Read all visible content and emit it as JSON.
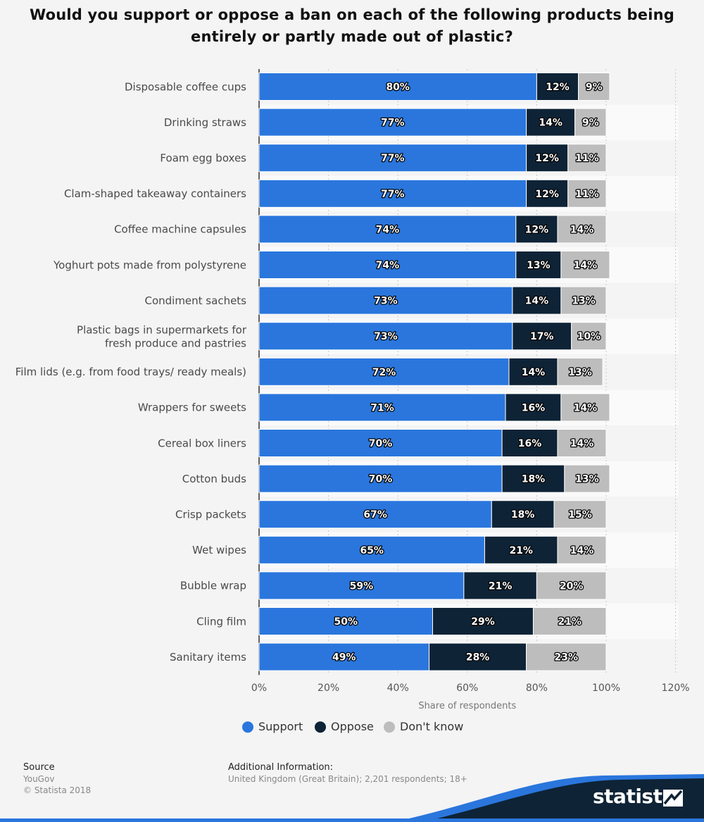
{
  "title": "Would you support or oppose a ban on each of the following products being entirely or partly made out of plastic?",
  "chart_data": {
    "type": "bar",
    "orientation": "horizontal",
    "stacked": true,
    "categories": [
      "Disposable coffee cups",
      "Drinking straws",
      "Foam egg boxes",
      "Clam-shaped takeaway containers",
      "Coffee machine capsules",
      "Yoghurt pots made from polystyrene",
      "Condiment sachets",
      "Plastic bags in supermarkets for\nfresh produce and pastries",
      "Film lids (e.g. from food trays/ ready meals)",
      "Wrappers for sweets",
      "Cereal box liners",
      "Cotton buds",
      "Crisp packets",
      "Wet wipes",
      "Bubble wrap",
      "Cling film",
      "Sanitary items"
    ],
    "series": [
      {
        "name": "Support",
        "color": "#2a76dd",
        "values": [
          80,
          77,
          77,
          77,
          74,
          74,
          73,
          73,
          72,
          71,
          70,
          70,
          67,
          65,
          59,
          50,
          49
        ]
      },
      {
        "name": "Oppose",
        "color": "#0e2336",
        "values": [
          12,
          14,
          12,
          12,
          12,
          13,
          14,
          17,
          14,
          16,
          16,
          18,
          18,
          21,
          21,
          29,
          28
        ]
      },
      {
        "name": "Don't know",
        "color": "#bdbdbd",
        "values": [
          9,
          9,
          11,
          11,
          14,
          14,
          13,
          10,
          13,
          14,
          14,
          13,
          15,
          14,
          20,
          21,
          23
        ]
      }
    ],
    "xlabel": "Share of respondents",
    "xlim": [
      0,
      120
    ],
    "xticks": [
      "0%",
      "20%",
      "40%",
      "60%",
      "80%",
      "100%",
      "120%"
    ],
    "value_suffix": "%",
    "grid": true,
    "legend_position": "bottom"
  },
  "footer": {
    "source_heading": "Source",
    "source_lines": [
      "YouGov",
      "© Statista 2018"
    ],
    "info_heading": "Additional Information:",
    "info_text": "United Kingdom (Great Britain); 2,201 respondents; 18+"
  },
  "brand": {
    "name": "statista",
    "accent": "#2a76dd",
    "dark": "#0e2336"
  }
}
